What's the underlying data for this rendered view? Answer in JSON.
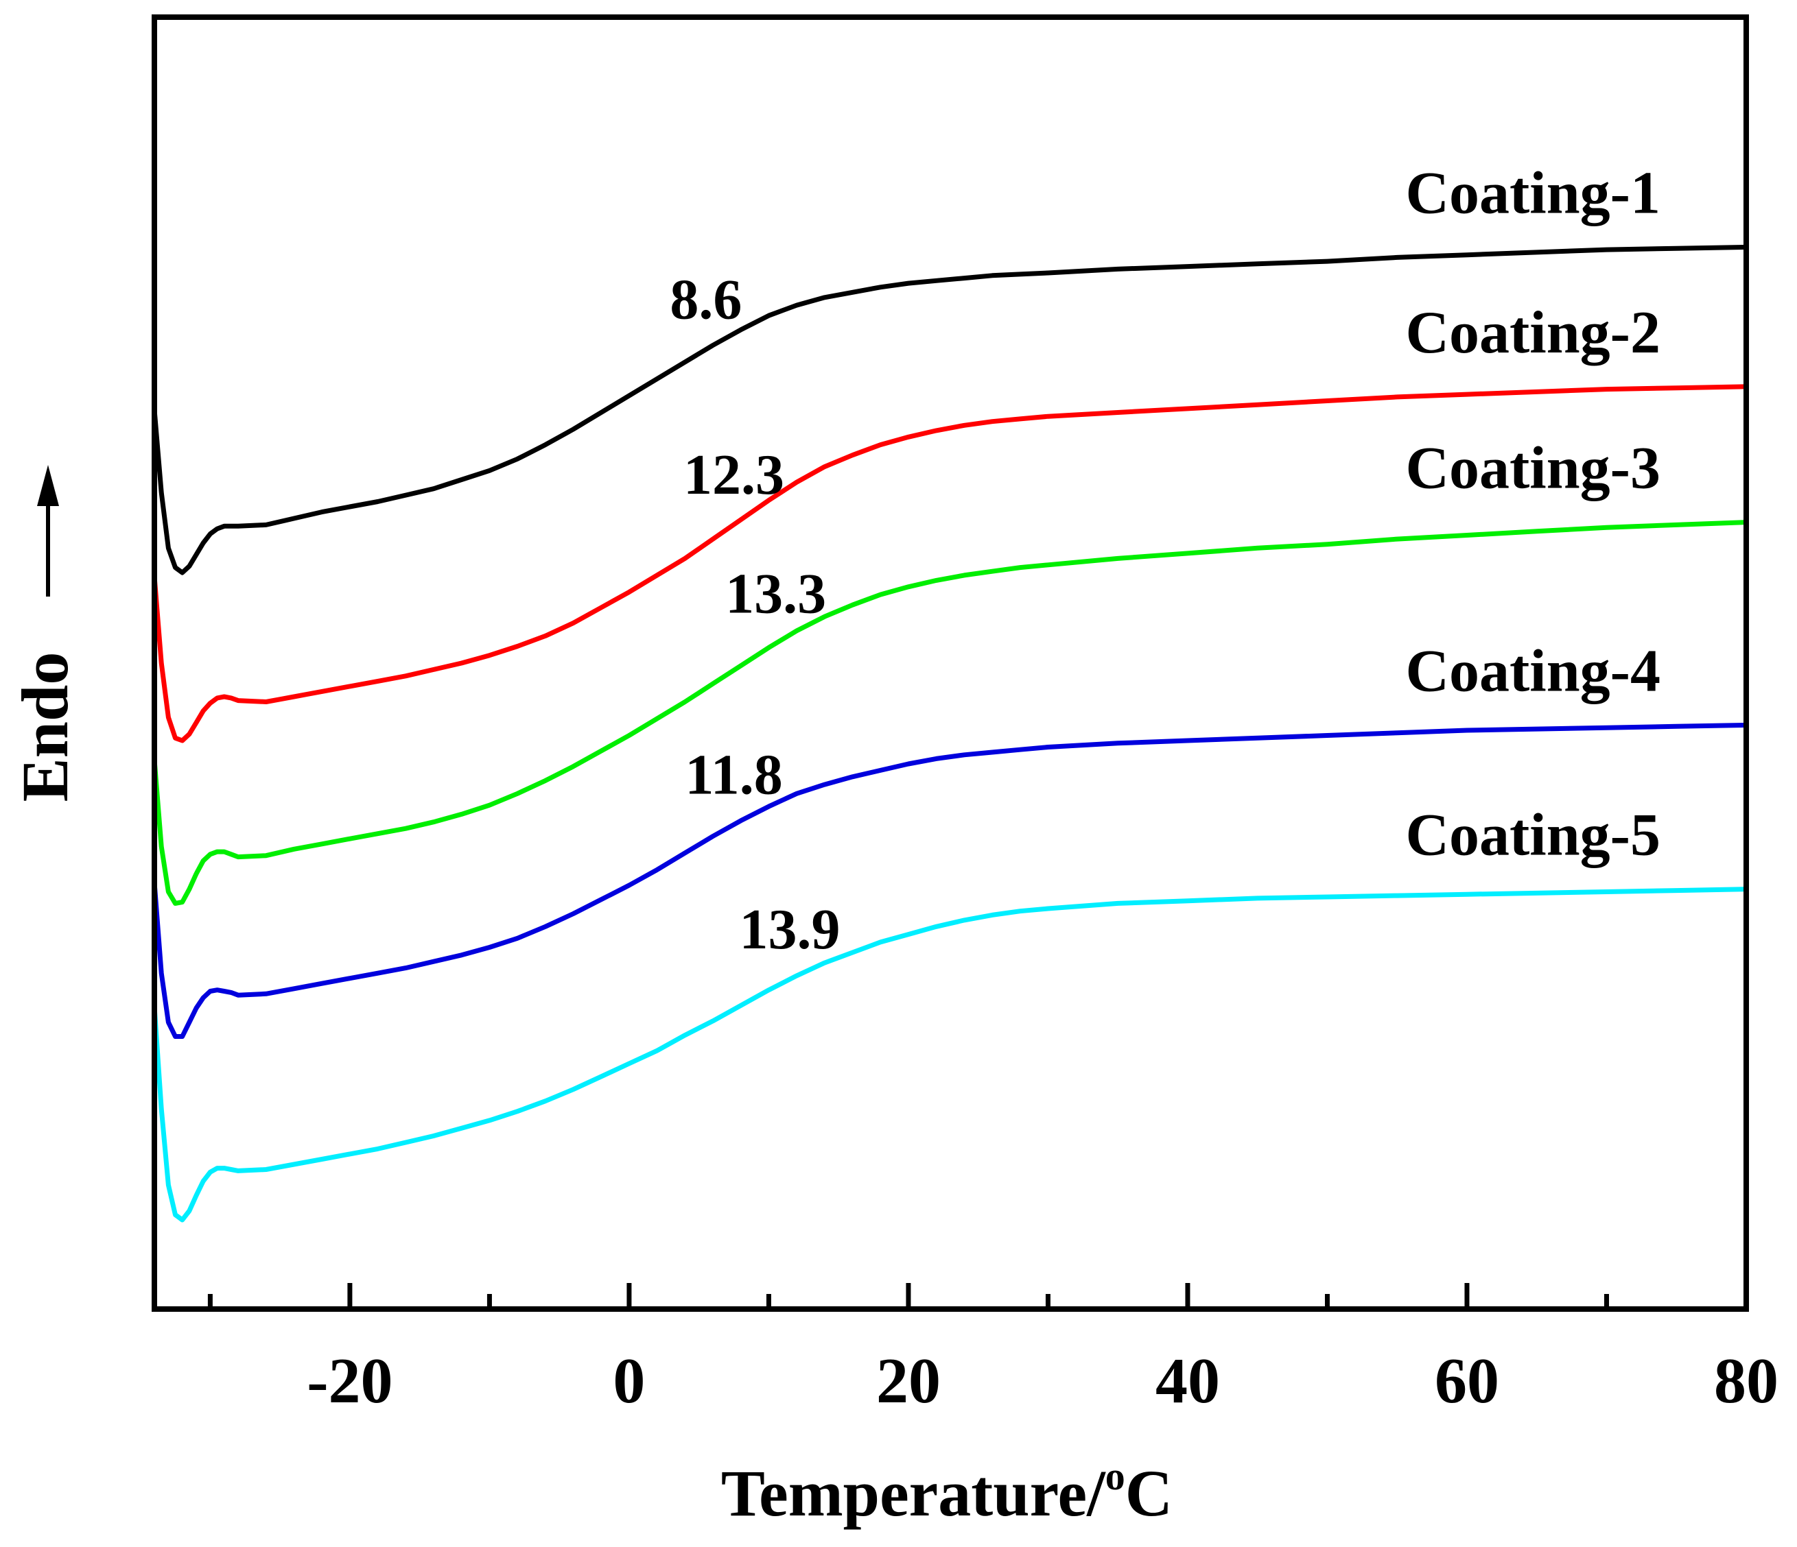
{
  "chart_data": {
    "type": "line",
    "title": "",
    "xlabel": "Temperature/",
    "xlabel_superscript": "o",
    "xlabel_unit": "C",
    "ylabel": "Endo",
    "ylabel_arrow": "up",
    "xlim": [
      -34,
      80
    ],
    "x_major_ticks": [
      -20,
      0,
      20,
      40,
      60,
      80
    ],
    "x_tick_labels": [
      "-20",
      "0",
      "20",
      "40",
      "60",
      "80"
    ],
    "x_minor_ticks": [
      -30,
      -10,
      10,
      30,
      50,
      70
    ],
    "y_ticks": "none",
    "ylim_relative": [
      0,
      100
    ],
    "grid": false,
    "series": [
      {
        "name": "Coating-1",
        "color": "#000000",
        "tg_label": "8.6",
        "tg_label_x": 5.5,
        "x": [
          -34,
          -33.5,
          -33,
          -32.5,
          -32,
          -31.5,
          -31,
          -30.5,
          -30,
          -29.5,
          -29,
          -28.5,
          -28,
          -26,
          -24,
          -22,
          -20,
          -18,
          -16,
          -14,
          -12,
          -10,
          -8,
          -6,
          -4,
          -2,
          0,
          2,
          4,
          6,
          8,
          10,
          12,
          14,
          16,
          18,
          20,
          22,
          24,
          26,
          28,
          30,
          35,
          40,
          45,
          50,
          55,
          60,
          65,
          70,
          75,
          80
        ],
        "y": [
          69.6,
          63.2,
          58.9,
          57.4,
          57.0,
          57.5,
          58.4,
          59.3,
          60.0,
          60.4,
          60.6,
          60.6,
          60.6,
          60.7,
          61.2,
          61.7,
          62.1,
          62.5,
          63.0,
          63.5,
          64.2,
          64.9,
          65.8,
          66.9,
          68.1,
          69.4,
          70.7,
          72.0,
          73.3,
          74.6,
          75.8,
          76.9,
          77.7,
          78.3,
          78.7,
          79.1,
          79.4,
          79.6,
          79.8,
          80.0,
          80.1,
          80.2,
          80.5,
          80.7,
          80.9,
          81.1,
          81.4,
          81.6,
          81.8,
          82.0,
          82.1,
          82.2
        ]
      },
      {
        "name": "Coating-2",
        "color": "#ff0000",
        "tg_label": "12.3",
        "tg_label_x": 7.5,
        "x": [
          -34,
          -33.5,
          -33,
          -32.5,
          -32,
          -31.5,
          -31,
          -30.5,
          -30,
          -29.5,
          -29,
          -28.5,
          -28,
          -26,
          -24,
          -22,
          -20,
          -18,
          -16,
          -14,
          -12,
          -10,
          -8,
          -6,
          -4,
          -2,
          0,
          2,
          4,
          6,
          8,
          10,
          12,
          14,
          16,
          18,
          20,
          22,
          24,
          26,
          28,
          30,
          35,
          40,
          45,
          50,
          55,
          60,
          65,
          70,
          75,
          80
        ],
        "y": [
          56.7,
          50.0,
          45.8,
          44.2,
          44.0,
          44.5,
          45.4,
          46.3,
          46.9,
          47.3,
          47.4,
          47.3,
          47.1,
          47.0,
          47.4,
          47.8,
          48.2,
          48.6,
          49.0,
          49.5,
          50.0,
          50.6,
          51.3,
          52.1,
          53.1,
          54.3,
          55.5,
          56.8,
          58.1,
          59.6,
          61.1,
          62.6,
          64.0,
          65.2,
          66.1,
          66.9,
          67.5,
          68.0,
          68.4,
          68.7,
          68.9,
          69.1,
          69.4,
          69.7,
          70.0,
          70.3,
          70.6,
          70.8,
          71.0,
          71.2,
          71.3,
          71.4
        ]
      },
      {
        "name": "Coating-3",
        "color": "#00ee00",
        "tg_label": "13.3",
        "tg_label_x": 10.5,
        "x": [
          -34,
          -33.5,
          -33,
          -32.5,
          -32,
          -31.5,
          -31,
          -30.5,
          -30,
          -29.5,
          -29,
          -28.5,
          -28,
          -26,
          -24,
          -22,
          -20,
          -18,
          -16,
          -14,
          -12,
          -10,
          -8,
          -6,
          -4,
          -2,
          0,
          2,
          4,
          6,
          8,
          10,
          12,
          14,
          16,
          18,
          20,
          22,
          24,
          26,
          28,
          30,
          35,
          40,
          45,
          50,
          55,
          60,
          65,
          70,
          75,
          80
        ],
        "y": [
          42.5,
          35.8,
          32.3,
          31.4,
          31.5,
          32.5,
          33.7,
          34.7,
          35.2,
          35.4,
          35.4,
          35.2,
          35.0,
          35.1,
          35.6,
          36.0,
          36.4,
          36.8,
          37.2,
          37.7,
          38.3,
          39.0,
          39.9,
          40.9,
          42.0,
          43.2,
          44.4,
          45.7,
          47.0,
          48.4,
          49.8,
          51.2,
          52.5,
          53.6,
          54.5,
          55.3,
          55.9,
          56.4,
          56.8,
          57.1,
          57.4,
          57.6,
          58.1,
          58.5,
          58.9,
          59.2,
          59.6,
          59.9,
          60.2,
          60.5,
          60.7,
          60.9
        ]
      },
      {
        "name": "Coating-4",
        "color": "#0000dd",
        "tg_label": "11.8",
        "tg_label_x": 7.5,
        "x": [
          -34,
          -33.5,
          -33,
          -32.5,
          -32,
          -31.5,
          -31,
          -30.5,
          -30,
          -29.5,
          -29,
          -28.5,
          -28,
          -26,
          -24,
          -22,
          -20,
          -18,
          -16,
          -14,
          -12,
          -10,
          -8,
          -6,
          -4,
          -2,
          0,
          2,
          4,
          6,
          8,
          10,
          12,
          14,
          16,
          18,
          20,
          22,
          24,
          26,
          28,
          30,
          35,
          40,
          45,
          50,
          55,
          60,
          65,
          70,
          75,
          80
        ],
        "y": [
          33.0,
          26.0,
          22.2,
          21.1,
          21.1,
          22.2,
          23.3,
          24.1,
          24.6,
          24.7,
          24.6,
          24.5,
          24.3,
          24.4,
          24.8,
          25.2,
          25.6,
          26.0,
          26.4,
          26.9,
          27.4,
          28.0,
          28.7,
          29.6,
          30.6,
          31.7,
          32.8,
          34.0,
          35.3,
          36.6,
          37.8,
          38.9,
          39.9,
          40.6,
          41.2,
          41.7,
          42.2,
          42.6,
          42.9,
          43.1,
          43.3,
          43.5,
          43.8,
          44.0,
          44.2,
          44.4,
          44.6,
          44.8,
          44.9,
          45.0,
          45.1,
          45.2
        ]
      },
      {
        "name": "Coating-5",
        "color": "#00eeff",
        "tg_label": "13.9",
        "tg_label_x": 11.5,
        "x": [
          -34,
          -33.5,
          -33,
          -32.5,
          -32,
          -31.5,
          -31,
          -30.5,
          -30,
          -29.5,
          -29,
          -28.5,
          -28,
          -26,
          -24,
          -22,
          -20,
          -18,
          -16,
          -14,
          -12,
          -10,
          -8,
          -6,
          -4,
          -2,
          0,
          2,
          4,
          6,
          8,
          10,
          12,
          14,
          16,
          18,
          20,
          22,
          24,
          26,
          28,
          30,
          35,
          40,
          45,
          50,
          55,
          60,
          65,
          70,
          75,
          80
        ],
        "y": [
          23.4,
          15.5,
          9.6,
          7.3,
          6.9,
          7.6,
          8.8,
          9.9,
          10.6,
          10.9,
          10.9,
          10.8,
          10.7,
          10.8,
          11.2,
          11.6,
          12.0,
          12.4,
          12.9,
          13.4,
          14.0,
          14.6,
          15.3,
          16.1,
          17.0,
          18.0,
          19.0,
          20.0,
          21.2,
          22.3,
          23.5,
          24.7,
          25.8,
          26.8,
          27.6,
          28.4,
          29.0,
          29.6,
          30.1,
          30.5,
          30.8,
          31.0,
          31.4,
          31.6,
          31.8,
          31.9,
          32.0,
          32.1,
          32.2,
          32.3,
          32.4,
          32.5
        ]
      }
    ]
  }
}
